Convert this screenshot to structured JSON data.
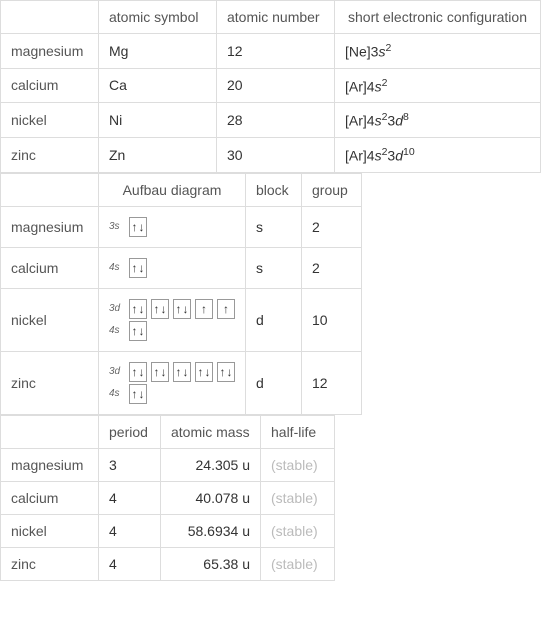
{
  "table1": {
    "headers": {
      "symbol": "atomic symbol",
      "number": "atomic number",
      "config": "short electronic configuration"
    },
    "rows": [
      {
        "name": "magnesium",
        "symbol": "Mg",
        "number": "12",
        "config_prefix": "[Ne]3",
        "config_parts": [
          [
            "s",
            "2"
          ]
        ]
      },
      {
        "name": "calcium",
        "symbol": "Ca",
        "number": "20",
        "config_prefix": "[Ar]4",
        "config_parts": [
          [
            "s",
            "2"
          ]
        ]
      },
      {
        "name": "nickel",
        "symbol": "Ni",
        "number": "28",
        "config_prefix": "[Ar]4",
        "config_parts": [
          [
            "s",
            "2"
          ],
          [
            "3d",
            "8"
          ]
        ]
      },
      {
        "name": "zinc",
        "symbol": "Zn",
        "number": "30",
        "config_prefix": "[Ar]4",
        "config_parts": [
          [
            "s",
            "2"
          ],
          [
            "3d",
            "10"
          ]
        ]
      }
    ],
    "col_widths": [
      "98px",
      "118px",
      "118px",
      "206px"
    ]
  },
  "table2": {
    "headers": {
      "aufbau": "Aufbau diagram",
      "block": "block",
      "group": "group"
    },
    "rows": [
      {
        "name": "magnesium",
        "orbitals": [
          {
            "label": "3s",
            "boxes": [
              2
            ]
          }
        ],
        "block": "s",
        "group": "2"
      },
      {
        "name": "calcium",
        "orbitals": [
          {
            "label": "4s",
            "boxes": [
              2
            ]
          }
        ],
        "block": "s",
        "group": "2"
      },
      {
        "name": "nickel",
        "orbitals": [
          {
            "label": "3d",
            "boxes": [
              2,
              2,
              2,
              1,
              1
            ]
          },
          {
            "label": "4s",
            "boxes": [
              2
            ]
          }
        ],
        "block": "d",
        "group": "10"
      },
      {
        "name": "zinc",
        "orbitals": [
          {
            "label": "3d",
            "boxes": [
              2,
              2,
              2,
              2,
              2
            ]
          },
          {
            "label": "4s",
            "boxes": [
              2
            ]
          }
        ],
        "block": "d",
        "group": "12"
      }
    ],
    "col_widths": [
      "98px",
      "138px",
      "56px",
      "60px"
    ]
  },
  "table3": {
    "headers": {
      "period": "period",
      "mass": "atomic mass",
      "half": "half-life"
    },
    "rows": [
      {
        "name": "magnesium",
        "period": "3",
        "mass": "24.305 u",
        "half": "(stable)"
      },
      {
        "name": "calcium",
        "period": "4",
        "mass": "40.078 u",
        "half": "(stable)"
      },
      {
        "name": "nickel",
        "period": "4",
        "mass": "58.6934 u",
        "half": "(stable)"
      },
      {
        "name": "zinc",
        "period": "4",
        "mass": "65.38 u",
        "half": "(stable)"
      }
    ],
    "col_widths": [
      "98px",
      "62px",
      "100px",
      "74px"
    ]
  },
  "style": {
    "border_color": "#dddddd",
    "text_color": "#333333",
    "muted_color": "#bbbbbb",
    "header_color": "#555555",
    "font_size": 14
  }
}
